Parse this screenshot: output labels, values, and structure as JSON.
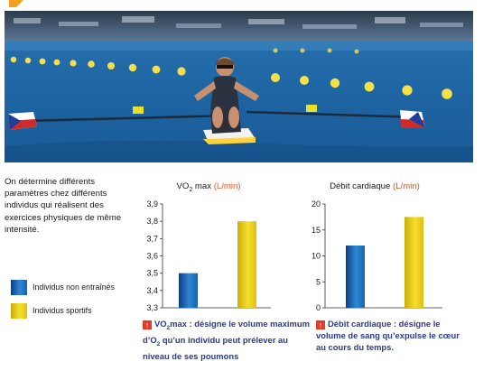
{
  "intro_text": "On détermine différents paramètres chez différents individus qui réalisent des exercices physiques de même intensité.",
  "legend": [
    {
      "label": "Individus non entraînés",
      "color": "#1f6fc0"
    },
    {
      "label": "Individus sportifs",
      "color": "#f0d21c"
    }
  ],
  "colors": {
    "accent": "#e0541f",
    "caption": "#2b3a8c",
    "arrow": "#e53a2a"
  },
  "icons": {
    "caption_arrow": "up-arrow-icon"
  },
  "chart_data": [
    {
      "type": "bar",
      "title_prefix": "VO",
      "title_sub": "2",
      "title_main": " max",
      "title_unit": "(L/min)",
      "categories": [
        "Individus non entraînés",
        "Individus sportifs"
      ],
      "values": [
        3.5,
        3.8
      ],
      "ylim": [
        3.3,
        3.9
      ],
      "yticks": [
        "3,3",
        "3,4",
        "3,5",
        "3,6",
        "3,7",
        "3,8",
        "3,9"
      ],
      "ytick_values": [
        3.3,
        3.4,
        3.5,
        3.6,
        3.7,
        3.8,
        3.9
      ],
      "grid": false,
      "legend_position": "left"
    },
    {
      "type": "bar",
      "title_main": "Débit cardiaque ",
      "title_unit": "(L/min)",
      "categories": [
        "Individus non entraînés",
        "Individus sportifs"
      ],
      "values": [
        12,
        17.5
      ],
      "ylim": [
        0,
        20
      ],
      "yticks": [
        "0",
        "5",
        "10",
        "15",
        "20"
      ],
      "ytick_values": [
        0,
        5,
        10,
        15,
        20
      ],
      "grid": false,
      "legend_position": "left"
    }
  ],
  "captions": [
    {
      "pre": "VO",
      "sub": "2",
      "text1": "max : désigne le volume maximum d’O",
      "sub2": "2",
      "text2": " qu’un individu peut prélever au niveau de ses poumons"
    },
    {
      "text1": "Débit cardiaque : désigne le volume de sang qu’expulse le cœur au cours du temps."
    }
  ]
}
